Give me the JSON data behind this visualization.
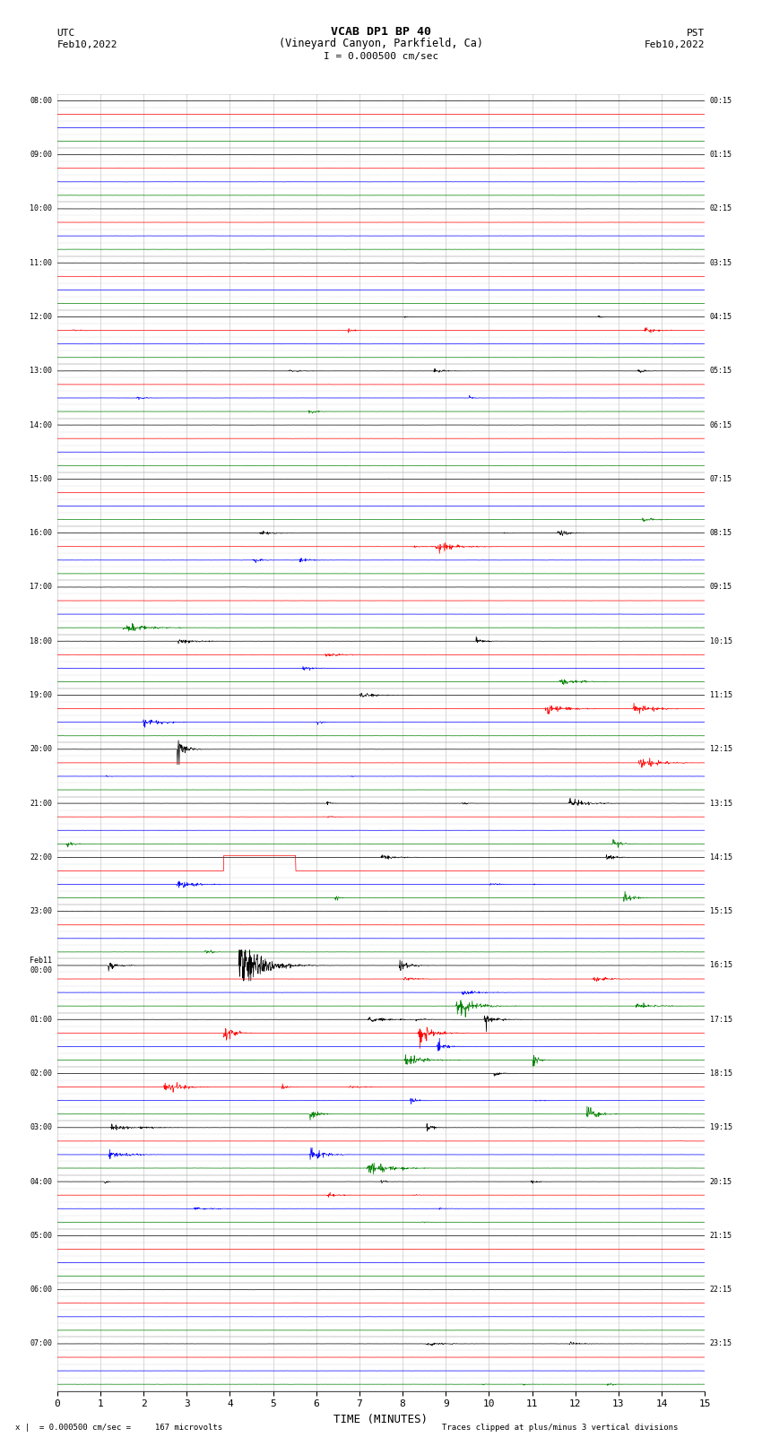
{
  "title_line1": "VCAB DP1 BP 40",
  "title_line2": "(Vineyard Canyon, Parkfield, Ca)",
  "scale_label": "I = 0.000500 cm/sec",
  "utc_label1": "UTC",
  "utc_label2": "Feb10,2022",
  "pst_label1": "PST",
  "pst_label2": "Feb10,2022",
  "bottom_label1": "x |  = 0.000500 cm/sec =     167 microvolts",
  "bottom_label2": "Traces clipped at plus/minus 3 vertical divisions",
  "xlabel": "TIME (MINUTES)",
  "xlim": [
    0,
    15
  ],
  "xticks": [
    0,
    1,
    2,
    3,
    4,
    5,
    6,
    7,
    8,
    9,
    10,
    11,
    12,
    13,
    14,
    15
  ],
  "left_times": [
    "08:00",
    "",
    "",
    "",
    "09:00",
    "",
    "",
    "",
    "10:00",
    "",
    "",
    "",
    "11:00",
    "",
    "",
    "",
    "12:00",
    "",
    "",
    "",
    "13:00",
    "",
    "",
    "",
    "14:00",
    "",
    "",
    "",
    "15:00",
    "",
    "",
    "",
    "16:00",
    "",
    "",
    "",
    "17:00",
    "",
    "",
    "",
    "18:00",
    "",
    "",
    "",
    "19:00",
    "",
    "",
    "",
    "20:00",
    "",
    "",
    "",
    "21:00",
    "",
    "",
    "",
    "22:00",
    "",
    "",
    "",
    "23:00",
    "",
    "",
    "",
    "Feb11\n00:00",
    "",
    "",
    "",
    "01:00",
    "",
    "",
    "",
    "02:00",
    "",
    "",
    "",
    "03:00",
    "",
    "",
    "",
    "04:00",
    "",
    "",
    "",
    "05:00",
    "",
    "",
    "",
    "06:00",
    "",
    "",
    "",
    "07:00",
    "",
    "",
    ""
  ],
  "right_times": [
    "00:15",
    "",
    "",
    "",
    "01:15",
    "",
    "",
    "",
    "02:15",
    "",
    "",
    "",
    "03:15",
    "",
    "",
    "",
    "04:15",
    "",
    "",
    "",
    "05:15",
    "",
    "",
    "",
    "06:15",
    "",
    "",
    "",
    "07:15",
    "",
    "",
    "",
    "08:15",
    "",
    "",
    "",
    "09:15",
    "",
    "",
    "",
    "10:15",
    "",
    "",
    "",
    "11:15",
    "",
    "",
    "",
    "12:15",
    "",
    "",
    "",
    "13:15",
    "",
    "",
    "",
    "14:15",
    "",
    "",
    "",
    "15:15",
    "",
    "",
    "",
    "16:15",
    "",
    "",
    "",
    "17:15",
    "",
    "",
    "",
    "18:15",
    "",
    "",
    "",
    "19:15",
    "",
    "",
    "",
    "20:15",
    "",
    "",
    "",
    "21:15",
    "",
    "",
    "",
    "22:15",
    "",
    "",
    "",
    "23:15",
    "",
    "",
    ""
  ],
  "colors": [
    "black",
    "red",
    "blue",
    "green"
  ],
  "num_rows": 96,
  "fig_width": 8.5,
  "fig_height": 16.13,
  "bg_color": "white",
  "grid_color": "#aaaaaa",
  "trace_linewidth": 0.5,
  "amplitude_scale": 0.38
}
